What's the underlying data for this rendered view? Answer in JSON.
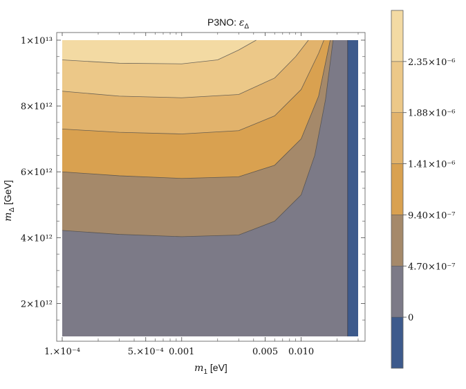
{
  "chart_data": {
    "type": "contour",
    "title": "P3NO: εΔ",
    "title_parts": {
      "prefix": "P3NO:  ",
      "symbol": "ε",
      "subscript": "Δ"
    },
    "xlabel": "m1 [eV]",
    "xlabel_parts": {
      "symbol": "m",
      "subscript": "1",
      "unit": " [eV]"
    },
    "ylabel": "mΔ [GeV]",
    "ylabel_parts": {
      "symbol": "m",
      "subscript": "Δ",
      "unit": " [GeV]"
    },
    "x_scale": "log",
    "x_range": [
      0.0001,
      0.03
    ],
    "y_range": [
      1000000000000.0,
      10000000000000.0
    ],
    "x_ticks": [
      {
        "value": 0.0001,
        "label": "1.×10⁻⁴"
      },
      {
        "value": 0.0005,
        "label": "5.×10⁻⁴"
      },
      {
        "value": 0.001,
        "label": "0.001"
      },
      {
        "value": 0.005,
        "label": "0.005"
      },
      {
        "value": 0.01,
        "label": "0.010"
      }
    ],
    "y_ticks": [
      {
        "value": 2000000000000.0,
        "label": "2×10¹²"
      },
      {
        "value": 4000000000000.0,
        "label": "4×10¹²"
      },
      {
        "value": 6000000000000.0,
        "label": "6×10¹²"
      },
      {
        "value": 8000000000000.0,
        "label": "8×10¹²"
      },
      {
        "value": 10000000000000.0,
        "label": "1×10¹³"
      }
    ],
    "levels": [
      -4.7e-07,
      0,
      4.7e-07,
      9.4e-07,
      1.41e-06,
      1.88e-06,
      2.35e-06,
      2.82e-06
    ],
    "level_colors": [
      "#3d5a8c",
      "#7c7a87",
      "#a5896a",
      "#d9a150",
      "#e2b36c",
      "#ecc888",
      "#f3daa3",
      "#fcf3c9"
    ],
    "colorbar_labels": [
      {
        "value": 0,
        "label": "0"
      },
      {
        "value": 4.7e-07,
        "label": "4.70×10⁻⁷"
      },
      {
        "value": 9.4e-07,
        "label": "9.40×10⁻⁷"
      },
      {
        "value": 1.41e-06,
        "label": "1.41×10⁻⁶"
      },
      {
        "value": 1.88e-06,
        "label": "1.88×10⁻⁶"
      },
      {
        "value": 2.35e-06,
        "label": "2.35×10⁻⁶"
      }
    ],
    "contours": [
      {
        "level": 4.7e-07,
        "points": [
          [
            0.0001,
            4220000000000.0
          ],
          [
            0.0003,
            4100000000000.0
          ],
          [
            0.001,
            4030000000000.0
          ],
          [
            0.003,
            4080000000000.0
          ],
          [
            0.006,
            4500000000000.0
          ],
          [
            0.01,
            5300000000000.0
          ],
          [
            0.013,
            6500000000000.0
          ],
          [
            0.016,
            8200000000000.0
          ],
          [
            0.0185,
            10000000000000.0
          ]
        ]
      },
      {
        "level": 9.4e-07,
        "points": [
          [
            0.0001,
            6000000000000.0
          ],
          [
            0.0003,
            5880000000000.0
          ],
          [
            0.001,
            5800000000000.0
          ],
          [
            0.003,
            5850000000000.0
          ],
          [
            0.006,
            6200000000000.0
          ],
          [
            0.01,
            7000000000000.0
          ],
          [
            0.014,
            8300000000000.0
          ],
          [
            0.0175,
            10000000000000.0
          ]
        ]
      },
      {
        "level": 1.41e-06,
        "points": [
          [
            0.0001,
            7300000000000.0
          ],
          [
            0.0003,
            7200000000000.0
          ],
          [
            0.001,
            7150000000000.0
          ],
          [
            0.003,
            7250000000000.0
          ],
          [
            0.006,
            7700000000000.0
          ],
          [
            0.01,
            8500000000000.0
          ],
          [
            0.014,
            9600000000000.0
          ],
          [
            0.0155,
            10000000000000.0
          ]
        ]
      },
      {
        "level": 1.88e-06,
        "points": [
          [
            0.0001,
            8450000000000.0
          ],
          [
            0.0003,
            8300000000000.0
          ],
          [
            0.001,
            8250000000000.0
          ],
          [
            0.003,
            8350000000000.0
          ],
          [
            0.006,
            8850000000000.0
          ],
          [
            0.009,
            9500000000000.0
          ],
          [
            0.0115,
            10000000000000.0
          ]
        ]
      },
      {
        "level": 2.35e-06,
        "points": [
          [
            0.0001,
            9400000000000.0
          ],
          [
            0.0003,
            9300000000000.0
          ],
          [
            0.001,
            9280000000000.0
          ],
          [
            0.002,
            9400000000000.0
          ],
          [
            0.003,
            9700000000000.0
          ],
          [
            0.0042,
            10000000000000.0
          ]
        ]
      },
      {
        "level": 0,
        "points": [
          [
            0.0245,
            1000000000000.0
          ],
          [
            0.0245,
            10000000000000.0
          ]
        ]
      }
    ]
  }
}
